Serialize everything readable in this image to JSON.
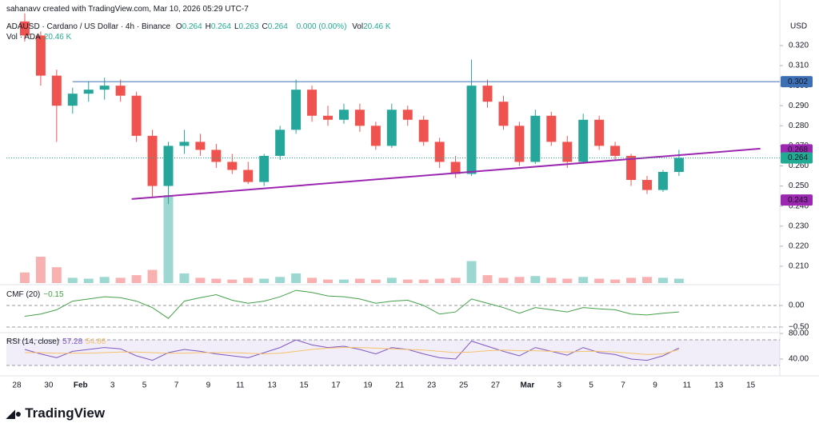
{
  "header": {
    "credit": "sahanavv created with TradingView.com, Mar 10, 2026 05:29 UTC-7",
    "symbol": "ADAUSD · Cardano / US Dollar · 4h · Binance",
    "ohlc": [
      {
        "k": "O",
        "v": "0.264"
      },
      {
        "k": "H",
        "v": "0.264"
      },
      {
        "k": "L",
        "v": "0.263"
      },
      {
        "k": "C",
        "v": "0.264"
      }
    ],
    "change": "0.000 (0.00%)",
    "vol_key": "Vol",
    "vol_value": "20.46 K",
    "vol_legend": "Vol · ADA",
    "vol_legend_value": "20.46 K",
    "currency": "USD",
    "brand": "TradingView"
  },
  "chart_data": [
    {
      "type": "candlestick",
      "up_color": "#26a69a",
      "down_color": "#ef5350",
      "x": [
        0.5,
        1.5,
        2.5,
        3.5,
        4.5,
        5.5,
        6.5,
        7.5,
        8.5,
        9.5,
        10.5,
        11.5,
        12.5,
        13.5,
        14.5,
        15.5,
        16.5,
        17.5,
        18.5,
        19.5,
        20.5,
        21.5,
        22.5,
        23.5,
        24.5,
        25.5,
        26.5,
        27.5,
        28.5,
        29.5,
        30.5,
        31.5,
        32.5,
        33.5,
        34.5,
        35.5,
        36.5,
        37.5,
        38.5,
        39.5,
        40.5,
        41.5
      ],
      "open": [
        0.332,
        0.325,
        0.305,
        0.29,
        0.296,
        0.298,
        0.3,
        0.295,
        0.275,
        0.25,
        0.27,
        0.272,
        0.268,
        0.262,
        0.258,
        0.252,
        0.265,
        0.278,
        0.298,
        0.285,
        0.283,
        0.288,
        0.28,
        0.27,
        0.288,
        0.283,
        0.272,
        0.262,
        0.256,
        0.3,
        0.292,
        0.28,
        0.262,
        0.285,
        0.272,
        0.262,
        0.283,
        0.27,
        0.265,
        0.253,
        0.248,
        0.257
      ],
      "high": [
        0.336,
        0.327,
        0.308,
        0.299,
        0.302,
        0.304,
        0.303,
        0.297,
        0.278,
        0.272,
        0.278,
        0.276,
        0.271,
        0.266,
        0.262,
        0.266,
        0.28,
        0.303,
        0.3,
        0.29,
        0.291,
        0.291,
        0.282,
        0.291,
        0.29,
        0.285,
        0.274,
        0.265,
        0.313,
        0.303,
        0.295,
        0.282,
        0.288,
        0.287,
        0.275,
        0.286,
        0.285,
        0.272,
        0.266,
        0.255,
        0.258,
        0.268
      ],
      "low": [
        0.322,
        0.3,
        0.272,
        0.286,
        0.292,
        0.293,
        0.292,
        0.272,
        0.244,
        0.241,
        0.266,
        0.265,
        0.259,
        0.256,
        0.251,
        0.25,
        0.263,
        0.276,
        0.282,
        0.28,
        0.281,
        0.277,
        0.268,
        0.269,
        0.28,
        0.27,
        0.259,
        0.254,
        0.255,
        0.289,
        0.278,
        0.26,
        0.261,
        0.27,
        0.259,
        0.261,
        0.268,
        0.263,
        0.25,
        0.246,
        0.247,
        0.255
      ],
      "close": [
        0.325,
        0.305,
        0.29,
        0.296,
        0.298,
        0.3,
        0.295,
        0.275,
        0.25,
        0.27,
        0.272,
        0.268,
        0.262,
        0.258,
        0.252,
        0.265,
        0.278,
        0.298,
        0.285,
        0.283,
        0.288,
        0.28,
        0.27,
        0.288,
        0.283,
        0.272,
        0.262,
        0.256,
        0.3,
        0.292,
        0.28,
        0.262,
        0.285,
        0.272,
        0.262,
        0.283,
        0.27,
        0.265,
        0.253,
        0.248,
        0.257,
        0.264
      ],
      "volume": [
        120,
        300,
        180,
        60,
        50,
        70,
        60,
        90,
        150,
        1000,
        110,
        60,
        50,
        40,
        60,
        50,
        70,
        110,
        60,
        40,
        40,
        50,
        40,
        60,
        40,
        40,
        50,
        60,
        250,
        90,
        60,
        70,
        80,
        60,
        50,
        70,
        50,
        40,
        60,
        70,
        60,
        50
      ],
      "xlim": [
        -0.65,
        47.82
      ],
      "xticks": [
        {
          "value": 0,
          "label": "28"
        },
        {
          "value": 2,
          "label": "30"
        },
        {
          "value": 4,
          "label": "Feb"
        },
        {
          "value": 6,
          "label": "3"
        },
        {
          "value": 8,
          "label": "5"
        },
        {
          "value": 10,
          "label": "7"
        },
        {
          "value": 12,
          "label": "9"
        },
        {
          "value": 14,
          "label": "11"
        },
        {
          "value": 16,
          "label": "13"
        },
        {
          "value": 18,
          "label": "15"
        },
        {
          "value": 20,
          "label": "17"
        },
        {
          "value": 22,
          "label": "19"
        },
        {
          "value": 24,
          "label": "21"
        },
        {
          "value": 26,
          "label": "23"
        },
        {
          "value": 28,
          "label": "25"
        },
        {
          "value": 30,
          "label": "27"
        },
        {
          "value": 32,
          "label": "Mar"
        },
        {
          "value": 34,
          "label": "3"
        },
        {
          "value": 36,
          "label": "5"
        },
        {
          "value": 38,
          "label": "7"
        },
        {
          "value": 40,
          "label": "9"
        },
        {
          "value": 42,
          "label": "11"
        },
        {
          "value": 44,
          "label": "13"
        },
        {
          "value": 46,
          "label": "15"
        }
      ],
      "ylim": [
        0.2012,
        0.3427
      ],
      "yticks": [
        {
          "value": 0.21,
          "label": "0.210"
        },
        {
          "value": 0.22,
          "label": "0.220"
        },
        {
          "value": 0.23,
          "label": "0.230"
        },
        {
          "value": 0.24,
          "label": "0.240"
        },
        {
          "value": 0.25,
          "label": "0.250"
        },
        {
          "value": 0.26,
          "label": "0.260"
        },
        {
          "value": 0.27,
          "label": "0.270"
        },
        {
          "value": 0.28,
          "label": "0.280"
        },
        {
          "value": 0.29,
          "label": "0.290"
        },
        {
          "value": 0.3,
          "label": "0.300"
        },
        {
          "value": 0.31,
          "label": "0.310"
        },
        {
          "value": 0.32,
          "label": "0.320"
        }
      ],
      "horizontal_line": {
        "value": 0.302,
        "from_x": 3.5,
        "color": "#3d6fb5"
      },
      "trendline": {
        "x": [
          7.2,
          46.6
        ],
        "y": [
          0.2435,
          0.2686
        ],
        "color": "#9c27b0"
      },
      "last_price": {
        "value": 0.264,
        "color": "#22ab94"
      },
      "price_labels": [
        {
          "value": 0.302,
          "color": "#3d6fb5"
        },
        {
          "value": 0.268,
          "color": "#9c27b0"
        },
        {
          "value": 0.264,
          "color": "#22ab94"
        },
        {
          "value": 0.243,
          "color": "#9c27b0"
        }
      ]
    },
    {
      "type": "line",
      "title": "CMF (20)",
      "legend_value": "−0.15",
      "series": [
        {
          "color": "#43a047",
          "values": [
            -0.25,
            -0.2,
            -0.1,
            0.1,
            0.15,
            0.2,
            0.18,
            0.1,
            -0.05,
            -0.3,
            0.1,
            0.18,
            0.25,
            0.12,
            0.05,
            0.1,
            0.2,
            0.35,
            0.3,
            0.22,
            0.2,
            0.15,
            0.05,
            0.1,
            0.12,
            0.0,
            -0.2,
            -0.15,
            0.15,
            0.05,
            -0.05,
            -0.18,
            -0.05,
            -0.1,
            -0.15,
            -0.05,
            -0.08,
            -0.1,
            -0.2,
            -0.22,
            -0.18,
            -0.15
          ]
        }
      ],
      "ylim": [
        -0.63,
        0.444
      ],
      "yticks": [
        {
          "value": 0,
          "label": "0.00"
        },
        {
          "value": -0.5,
          "label": "−0.50"
        }
      ]
    },
    {
      "type": "line",
      "title": "RSI (14, close)",
      "legend_values": [
        "57.28",
        "54.86"
      ],
      "series": [
        {
          "color": "#7e57c2",
          "values": [
            55,
            48,
            42,
            52,
            55,
            58,
            56,
            45,
            38,
            50,
            55,
            52,
            48,
            45,
            42,
            50,
            58,
            70,
            62,
            58,
            60,
            55,
            48,
            58,
            55,
            48,
            42,
            40,
            68,
            60,
            52,
            45,
            58,
            52,
            46,
            58,
            50,
            47,
            40,
            38,
            45,
            57.28
          ]
        },
        {
          "color": "#f5c26b",
          "values": [
            50,
            50,
            49,
            49,
            49,
            50,
            51,
            51,
            50,
            49,
            49,
            50,
            50,
            50,
            49,
            48,
            49,
            52,
            55,
            57,
            58,
            58,
            57,
            56,
            55,
            54,
            52,
            50,
            51,
            53,
            54,
            53,
            53,
            52,
            51,
            52,
            52,
            51,
            49,
            47,
            48,
            54.86
          ]
        }
      ],
      "band": [
        30,
        70
      ],
      "ylim": [
        20,
        83.75
      ],
      "yticks": [
        {
          "value": 80,
          "label": "80.00"
        },
        {
          "value": 40,
          "label": "40.00"
        }
      ]
    }
  ]
}
